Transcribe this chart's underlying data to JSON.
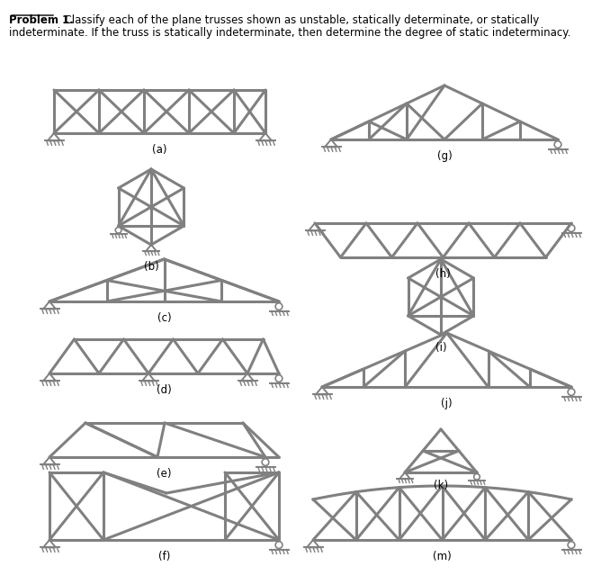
{
  "title_bold": "Problem 1.",
  "title_rest": "  Classify each of the plane trusses shown as unstable, statically determinate, or statically",
  "title_line2": "indeterminate. If the truss is statically indeterminate, then determine the degree of static indeterminacy.",
  "background_color": "#ffffff",
  "member_color": "#808080",
  "member_lw": 2.2,
  "label_fontsize": 8.5,
  "text_fontsize": 8.5
}
